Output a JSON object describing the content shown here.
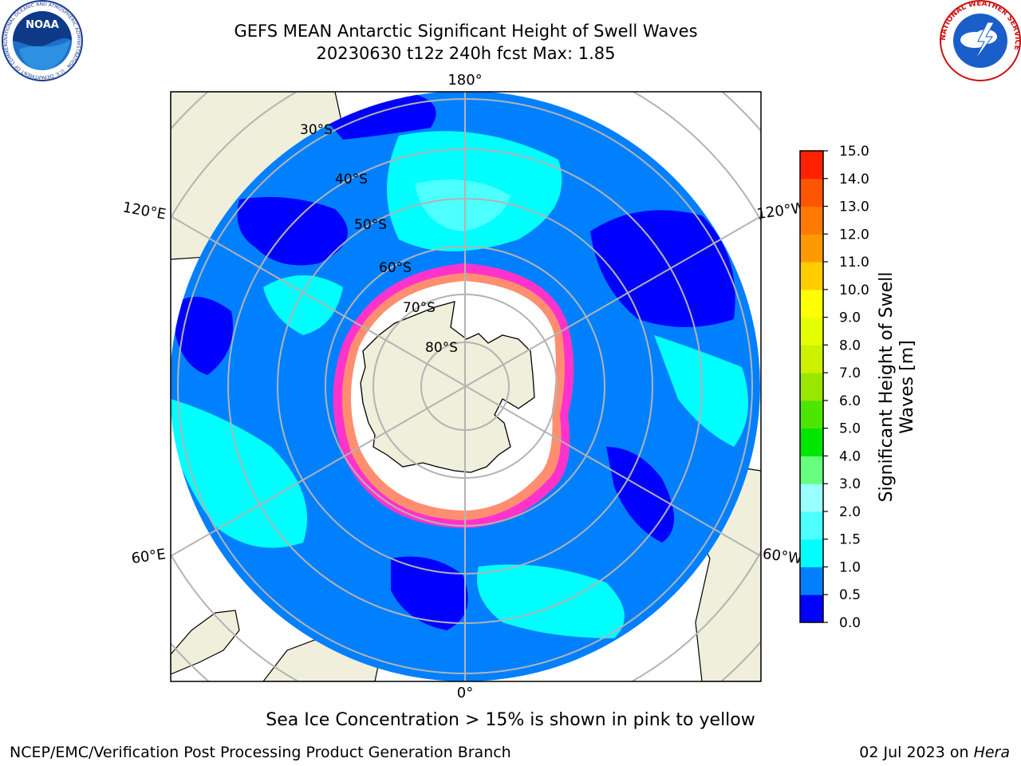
{
  "title_line1": "GEFS MEAN Antarctic Significant Height of Swell Waves",
  "title_line2": "20230630 t12z 240h fcst   Max: 1.85",
  "map": {
    "lon_labels": [
      "180°",
      "120°E",
      "120°W",
      "60°E",
      "60°W",
      "0°"
    ],
    "lat_labels": [
      "30°S",
      "40°S",
      "50°S",
      "60°S",
      "70°S",
      "80°S"
    ],
    "colors": {
      "ocean_low": "#0000ff",
      "ocean_mid": "#0080ff",
      "ocean_high": "#00ffff",
      "land": "#efefdb",
      "sea_ice": "#ff33cc",
      "grid": "#b3b3b3"
    }
  },
  "colorbar": {
    "label": "Significant Height of Swell Waves [m]",
    "tick_labels": [
      "0.0",
      "0.5",
      "1.0",
      "1.5",
      "2.0",
      "3.0",
      "4.0",
      "5.0",
      "6.0",
      "7.0",
      "8.0",
      "9.0",
      "10.0",
      "11.0",
      "12.0",
      "13.0",
      "14.0",
      "15.0"
    ],
    "colors": [
      "#0000ff",
      "#0080ff",
      "#00ffff",
      "#4dffff",
      "#99ffff",
      "#66ff80",
      "#00e600",
      "#4de600",
      "#99e600",
      "#ccf200",
      "#e6ff00",
      "#ffff00",
      "#ffcc00",
      "#ff9900",
      "#ff7a00",
      "#ff5500",
      "#ff2200"
    ]
  },
  "note": "Sea Ice Concentration > 15% is shown in pink to yellow",
  "credit": "NCEP/EMC/Verification Post Processing Product Generation Branch",
  "date_text": "02 Jul 2023 on",
  "machine": "Hera",
  "logos": {
    "noaa": "NOAA",
    "noaa_ring": "NATIONAL OCEANIC AND ATMOSPHERIC ADMINISTRATION · U.S. DEPARTMENT OF COMMERCE",
    "nws_ring": "NATIONAL WEATHER SERVICE"
  }
}
